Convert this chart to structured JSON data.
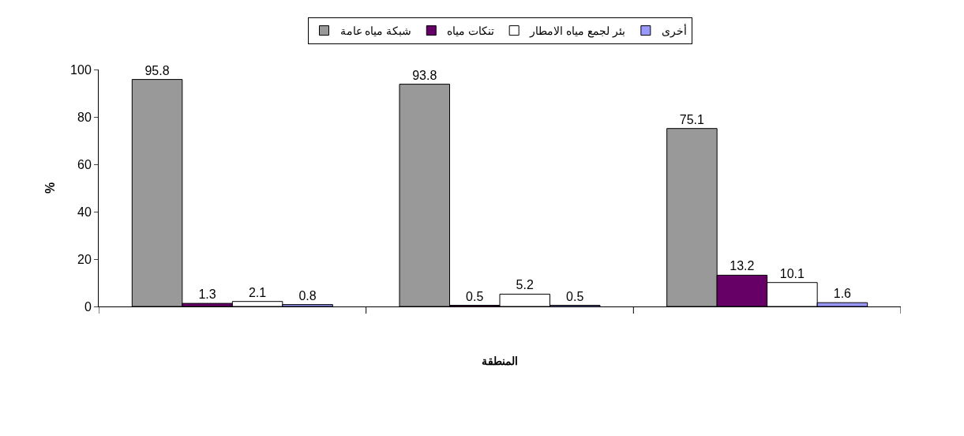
{
  "chart_data": {
    "type": "bar",
    "xlabel": "المنطقة",
    "ylabel": "%",
    "categories": [
      null,
      null,
      null
    ],
    "series": [
      {
        "name": "شبكة مياه عامة",
        "color": "#999999",
        "values": [
          95.8,
          93.8,
          75.1
        ]
      },
      {
        "name": "تنكات مياه",
        "color": "#660066",
        "values": [
          1.3,
          0.5,
          13.2
        ]
      },
      {
        "name": "بئر لجمع مياه الامطار",
        "color": "#ffffff",
        "values": [
          2.1,
          5.2,
          10.1
        ]
      },
      {
        "name": "أخرى",
        "color": "#9999ff",
        "values": [
          0.8,
          0.5,
          1.6
        ]
      }
    ],
    "ylim": [
      0,
      100
    ],
    "yticks": [
      0,
      20,
      40,
      60,
      80,
      100
    ],
    "legend": "top",
    "data_labels": true
  }
}
